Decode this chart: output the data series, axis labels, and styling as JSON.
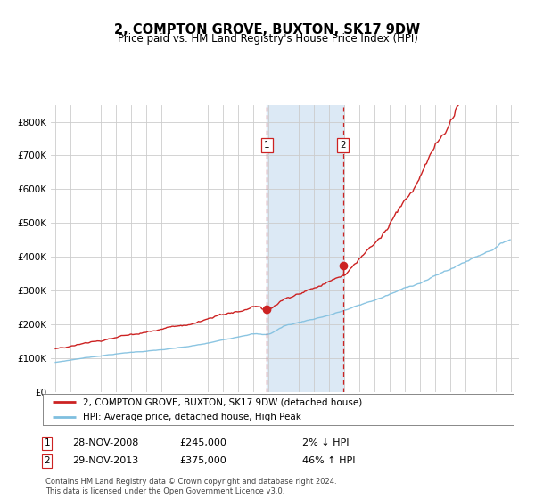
{
  "title": "2, COMPTON GROVE, BUXTON, SK17 9DW",
  "subtitle": "Price paid vs. HM Land Registry's House Price Index (HPI)",
  "legend_property": "2, COMPTON GROVE, BUXTON, SK17 9DW (detached house)",
  "legend_hpi": "HPI: Average price, detached house, High Peak",
  "transaction1_date": "28-NOV-2008",
  "transaction1_price": 245000,
  "transaction1_label": "2% ↓ HPI",
  "transaction2_date": "29-NOV-2013",
  "transaction2_price": 375000,
  "transaction2_label": "46% ↑ HPI",
  "footer": "Contains HM Land Registry data © Crown copyright and database right 2024.\nThis data is licensed under the Open Government Licence v3.0.",
  "hpi_color": "#7fbfdf",
  "property_color": "#cc2222",
  "marker_color": "#cc2222",
  "dashed_line_color": "#cc2222",
  "shade_color": "#dce9f5",
  "grid_color": "#cccccc",
  "bg_color": "#ffffff",
  "ylim": [
    0,
    850000
  ],
  "yticks": [
    0,
    100000,
    200000,
    300000,
    400000,
    500000,
    600000,
    700000,
    800000
  ],
  "start_year": 1995,
  "end_year": 2025,
  "transaction1_x": 2008.92,
  "transaction2_x": 2013.92
}
